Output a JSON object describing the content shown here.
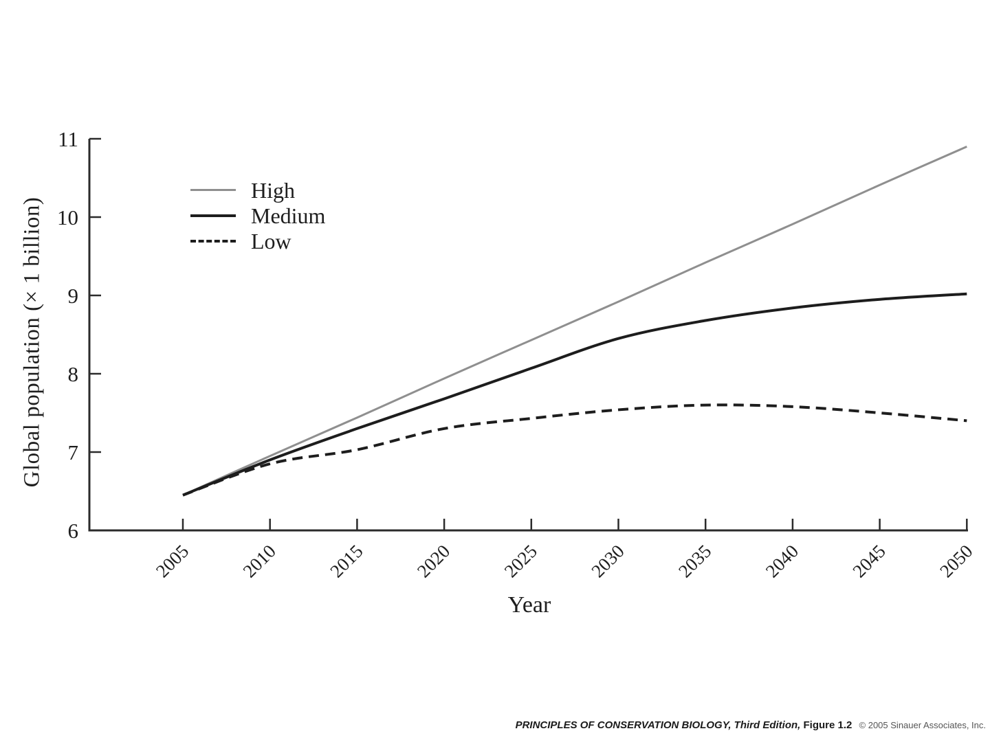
{
  "chart_data": {
    "type": "line",
    "title": "",
    "xlabel": "Year",
    "ylabel": "Global population (× 1 billion)",
    "x": [
      2005,
      2010,
      2015,
      2020,
      2025,
      2030,
      2035,
      2040,
      2045,
      2050
    ],
    "ylim": [
      6,
      11
    ],
    "yticks": [
      6,
      7,
      8,
      9,
      10,
      11
    ],
    "grid": false,
    "legend_position": "upper-left-inside",
    "axis_color": "#2b2b2b",
    "series": [
      {
        "name": "High",
        "color": "#8f8f8f",
        "style": "solid",
        "width": 3,
        "values": [
          6.45,
          6.95,
          7.44,
          7.94,
          8.43,
          8.92,
          9.42,
          9.91,
          10.41,
          10.9
        ]
      },
      {
        "name": "Medium",
        "color": "#1d1d1d",
        "style": "solid",
        "width": 4,
        "values": [
          6.45,
          6.9,
          7.3,
          7.68,
          8.07,
          8.45,
          8.68,
          8.84,
          8.95,
          9.02
        ]
      },
      {
        "name": "Low",
        "color": "#1d1d1d",
        "style": "dashed",
        "width": 4,
        "values": [
          6.45,
          6.85,
          7.03,
          7.3,
          7.43,
          7.54,
          7.6,
          7.58,
          7.5,
          7.4
        ]
      }
    ]
  },
  "footer": {
    "source": "PRINCIPLES OF CONSERVATION BIOLOGY, Third Edition,",
    "figure": "Figure 1.2",
    "copyright": "© 2005 Sinauer Associates, Inc."
  }
}
